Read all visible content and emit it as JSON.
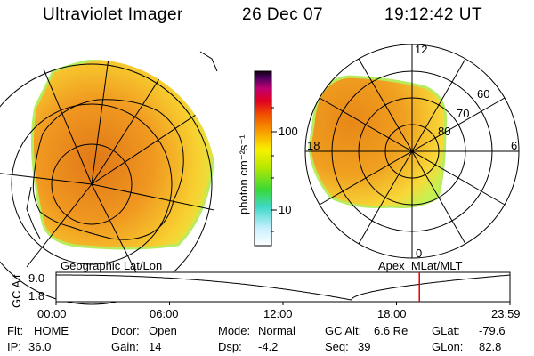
{
  "header": {
    "title": "Ultraviolet Imager",
    "date": "26 Dec 07",
    "time": "19:12:42 UT"
  },
  "colorbar": {
    "label": "photon cm⁻²s⁻¹",
    "ticks": [
      {
        "value": 100,
        "label": "100"
      },
      {
        "value": 10,
        "label": "10"
      }
    ],
    "scale": "log"
  },
  "left_map": {
    "caption": "Geographic Lat/Lon"
  },
  "right_map": {
    "caption": "Apex  MLat/MLT",
    "mlt_labels": {
      "top": "12",
      "right": "6",
      "bottom": "0",
      "left": "18"
    },
    "mlat_labels": [
      "60",
      "70",
      "80"
    ]
  },
  "orbit_plot": {
    "ylabel": "GC Alt",
    "ymax_label": "9.0",
    "ymin_label": "1.8",
    "x_ticks": [
      "00:00",
      "06:00",
      "12:00",
      "18:00",
      "23:59"
    ],
    "current_time_hours": 19.21,
    "marker_color": "#e00000"
  },
  "status": {
    "flt_label": "Flt:",
    "flt_value": "HOME",
    "ip_label": "IP:",
    "ip_value": "36.0",
    "door_label": "Door:",
    "door_value": "Open",
    "gain_label": "Gain:",
    "gain_value": "14",
    "mode_label": "Mode:",
    "mode_value": "Normal",
    "dsp_label": "Dsp:",
    "dsp_value": "-4.2",
    "gcalt_label": "GC Alt:",
    "gcalt_value": "6.6 Re",
    "seq_label": "Seq:",
    "seq_value": "39",
    "glat_label": "GLat:",
    "glat_value": "-79.6",
    "glon_label": "GLon:",
    "glon_value": "82.8"
  }
}
